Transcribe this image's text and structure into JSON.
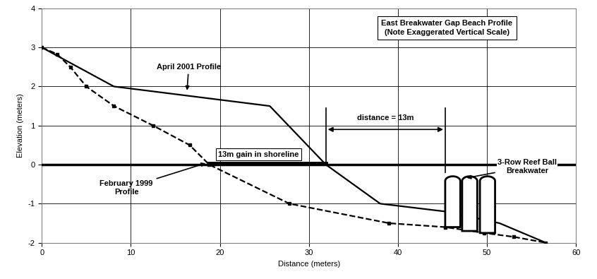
{
  "chart_data": {
    "type": "line",
    "title": "East Breakwater Gap Beach Profile\n(Note Exaggerated Vertical Scale)",
    "x_label": "Distance (meters)",
    "y_label": "Elevation (meters)",
    "xlim": [
      0,
      60
    ],
    "ylim": [
      -2,
      4
    ],
    "xticks": [
      0,
      10,
      20,
      30,
      40,
      50,
      60
    ],
    "yticks": [
      -2,
      -1,
      0,
      1,
      2,
      3,
      4
    ],
    "grid": true,
    "series": [
      {
        "name": "April 2001 Profile",
        "color": "#000000",
        "line_style": "solid",
        "marker": "none",
        "x": [
          0,
          8.1,
          25.6,
          31.9,
          38,
          45.3,
          51.4,
          56.6
        ],
        "values": [
          3,
          2,
          1.5,
          0,
          -1,
          -1.2,
          -1.5,
          -2
        ]
      },
      {
        "name": "February 1999\nProfile",
        "color": "#000000",
        "line_style": "dashed",
        "marker": "square",
        "x": [
          0,
          1.7,
          3.2,
          5,
          8.1,
          12.5,
          16.6,
          18.8,
          27.8,
          39,
          45.3,
          49.7,
          53,
          56.6
        ],
        "values": [
          3,
          2.83,
          2.5,
          2,
          1.5,
          1,
          0.5,
          0,
          -1,
          -1.5,
          -1.6,
          -1.75,
          -1.85,
          -2
        ]
      }
    ],
    "water_level": 0,
    "shoreline_gain": {
      "label": "13m gain in shoreline",
      "x": [
        18.8,
        31.9
      ],
      "y": 0.04
    },
    "distance": {
      "label": "distance = 13m",
      "x": [
        31.9,
        45.3
      ],
      "y": 0.9
    },
    "breakwater": {
      "label": "3-Row Reef Ball\nBreakwater",
      "left": [
        45.3,
        47.2,
        49.2
      ],
      "right": [
        47.0,
        48.9,
        50.9
      ],
      "top": [
        -0.3,
        -0.3,
        -0.3
      ],
      "bottom": [
        -1.6,
        -1.7,
        -1.75
      ]
    }
  }
}
